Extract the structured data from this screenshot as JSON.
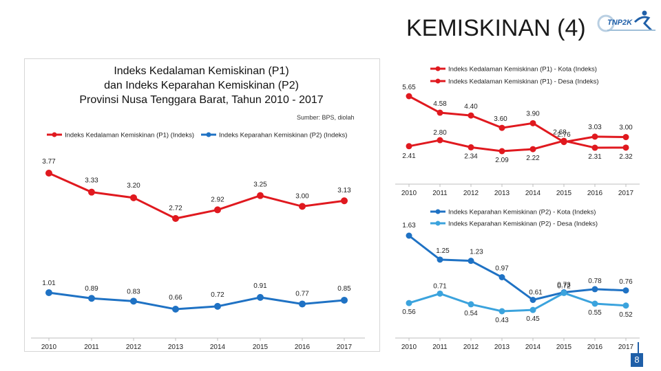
{
  "slide": {
    "title": "KEMISKINAN (4)",
    "logo_text": "TNP2K",
    "page_number": "8"
  },
  "colors": {
    "red": "#e0191f",
    "blue": "#1f72c4",
    "light_blue": "#3ba3dd",
    "brand_blue": "#1f5fa8"
  },
  "left_chart": {
    "title_lines": [
      "Indeks Kedalaman Kemiskinan (P1)",
      "dan Indeks Keparahan Kemiskinan (P2)",
      "Provinsi Nusa Tenggara Barat, Tahun 2010 - 2017"
    ],
    "source": "Sumber: BPS, diolah"
  },
  "chart_data": [
    {
      "id": "left-combined",
      "type": "line",
      "x": [
        "2010",
        "2011",
        "2012",
        "2013",
        "2014",
        "2015",
        "2016",
        "2017"
      ],
      "series": [
        {
          "name": "Indeks Kedalaman Kemiskinan (P1) (Indeks)",
          "color": "#e0191f",
          "values": [
            3.77,
            3.33,
            3.2,
            2.72,
            2.92,
            3.25,
            3.0,
            3.13
          ],
          "labels": [
            "3.77",
            "3.33",
            "3.20",
            "2.72",
            "2.92",
            "3.25",
            "3.00",
            "3.13"
          ]
        },
        {
          "name": "Indeks Keparahan Kemiskinan (P2) (Indeks)",
          "color": "#1f72c4",
          "values": [
            1.01,
            0.89,
            0.83,
            0.66,
            0.72,
            0.91,
            0.77,
            0.85
          ],
          "labels": [
            "1.01",
            "0.89",
            "0.83",
            "0.66",
            "0.72",
            "0.91",
            "0.77",
            "0.85"
          ]
        }
      ]
    },
    {
      "id": "right-p1",
      "type": "line",
      "x": [
        "2010",
        "2011",
        "2012",
        "2013",
        "2014",
        "2015",
        "2016",
        "2017"
      ],
      "series": [
        {
          "name": "Indeks Kedalaman Kemiskinan (P1) - Kota (Indeks)",
          "color": "#e0191f",
          "values": [
            5.65,
            4.58,
            4.4,
            3.6,
            3.9,
            2.68,
            3.03,
            3.0
          ],
          "labels": [
            "5.65",
            "4.58",
            "4.40",
            "3.60",
            "3.90",
            "2.68",
            "3.03",
            "3.00"
          ]
        },
        {
          "name": "Indeks Kedalaman Kemiskinan (P1) - Desa (Indeks)",
          "color": "#e0191f",
          "values": [
            2.41,
            2.8,
            2.34,
            2.09,
            2.22,
            2.76,
            2.31,
            2.32
          ],
          "labels": [
            "2.41",
            "2.80",
            "2.34",
            "2.09",
            "2.22",
            "2.76",
            "2.31",
            "2.32"
          ]
        }
      ]
    },
    {
      "id": "right-p2",
      "type": "line",
      "x": [
        "2010",
        "2011",
        "2012",
        "2013",
        "2014",
        "2015",
        "2016",
        "2017"
      ],
      "series": [
        {
          "name": "Indeks Keparahan Kemiskinan (P2) - Kota (Indeks)",
          "color": "#1f72c4",
          "values": [
            1.63,
            1.25,
            1.23,
            0.97,
            0.61,
            0.73,
            0.78,
            0.76
          ],
          "labels": [
            "1.63",
            "1.25",
            "1.23",
            "0.97",
            "0.61",
            "0.73",
            "0.78",
            "0.76"
          ]
        },
        {
          "name": "Indeks Keparahan Kemiskinan (P2) - Desa (Indeks)",
          "color": "#3ba3dd",
          "values": [
            0.56,
            0.71,
            0.54,
            0.43,
            0.45,
            0.72,
            0.55,
            0.52
          ],
          "labels": [
            "0.56",
            "0.71",
            "0.54",
            "0.43",
            "0.45",
            "0.72",
            "0.55",
            "0.52"
          ]
        }
      ]
    }
  ]
}
